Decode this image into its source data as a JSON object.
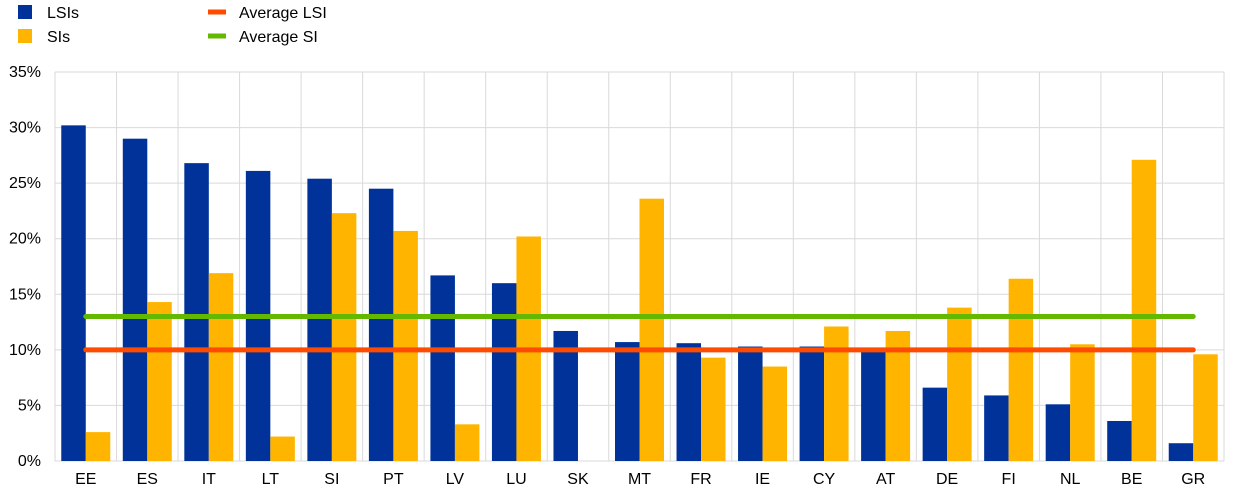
{
  "chart_data": {
    "type": "bar",
    "categories": [
      "EE",
      "ES",
      "IT",
      "LT",
      "SI",
      "PT",
      "LV",
      "LU",
      "SK",
      "MT",
      "FR",
      "IE",
      "CY",
      "AT",
      "DE",
      "FI",
      "NL",
      "BE",
      "GR"
    ],
    "series": [
      {
        "name": "LSIs",
        "color": "#003299",
        "values": [
          30.2,
          29.0,
          26.8,
          26.1,
          25.4,
          24.5,
          16.7,
          16.0,
          11.7,
          10.7,
          10.6,
          10.3,
          10.3,
          10.0,
          6.6,
          5.9,
          5.1,
          3.6,
          1.6
        ]
      },
      {
        "name": "SIs",
        "color": "#FFB400",
        "values": [
          2.6,
          14.3,
          16.9,
          2.2,
          22.3,
          20.7,
          3.3,
          20.2,
          null,
          23.6,
          9.3,
          8.5,
          12.1,
          11.7,
          13.8,
          16.4,
          10.5,
          27.1,
          9.6
        ]
      }
    ],
    "reference_lines": [
      {
        "name": "Average LSI",
        "value": 10.0,
        "color": "#FF4B00"
      },
      {
        "name": "Average SI",
        "value": 13.0,
        "color": "#65B800"
      }
    ],
    "yticks": [
      "0%",
      "5%",
      "10%",
      "15%",
      "20%",
      "25%",
      "30%",
      "35%"
    ],
    "ylim": [
      0,
      35
    ],
    "title": "",
    "xlabel": "",
    "ylabel": "",
    "grid": true,
    "legend_position": "top-left"
  }
}
